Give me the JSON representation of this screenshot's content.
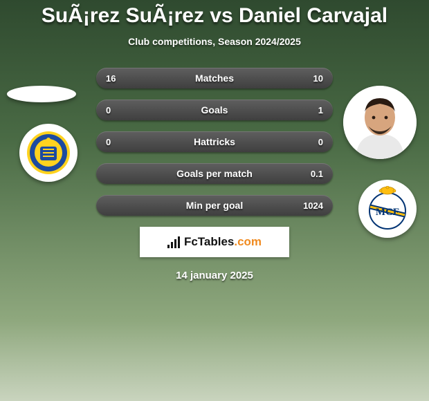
{
  "title": "SuÃ¡rez SuÃ¡rez vs Daniel Carvajal",
  "subtitle": "Club competitions, Season 2024/2025",
  "rows": [
    {
      "left": "16",
      "label": "Matches",
      "right": "10"
    },
    {
      "left": "0",
      "label": "Goals",
      "right": "1"
    },
    {
      "left": "0",
      "label": "Hattricks",
      "right": "0"
    },
    {
      "left": "",
      "label": "Goals per match",
      "right": "0.1"
    },
    {
      "left": "",
      "label": "Min per goal",
      "right": "1024"
    }
  ],
  "brand": {
    "name": "FcTables",
    "suffix": ".com"
  },
  "date": "14 january 2025",
  "crests": {
    "left": {
      "name": "las-palmas",
      "primary": "#1c4aa0",
      "secondary": "#ffd21f"
    },
    "right": {
      "name": "real-madrid",
      "primary": "#023474",
      "secondary": "#febe10"
    }
  },
  "colors": {
    "pill_bg": "#4a4a4a",
    "text": "#ffffff",
    "bg_gradient": [
      "#2f4a2f",
      "#4a6b45",
      "#8fa87e",
      "#c9d4be"
    ]
  }
}
